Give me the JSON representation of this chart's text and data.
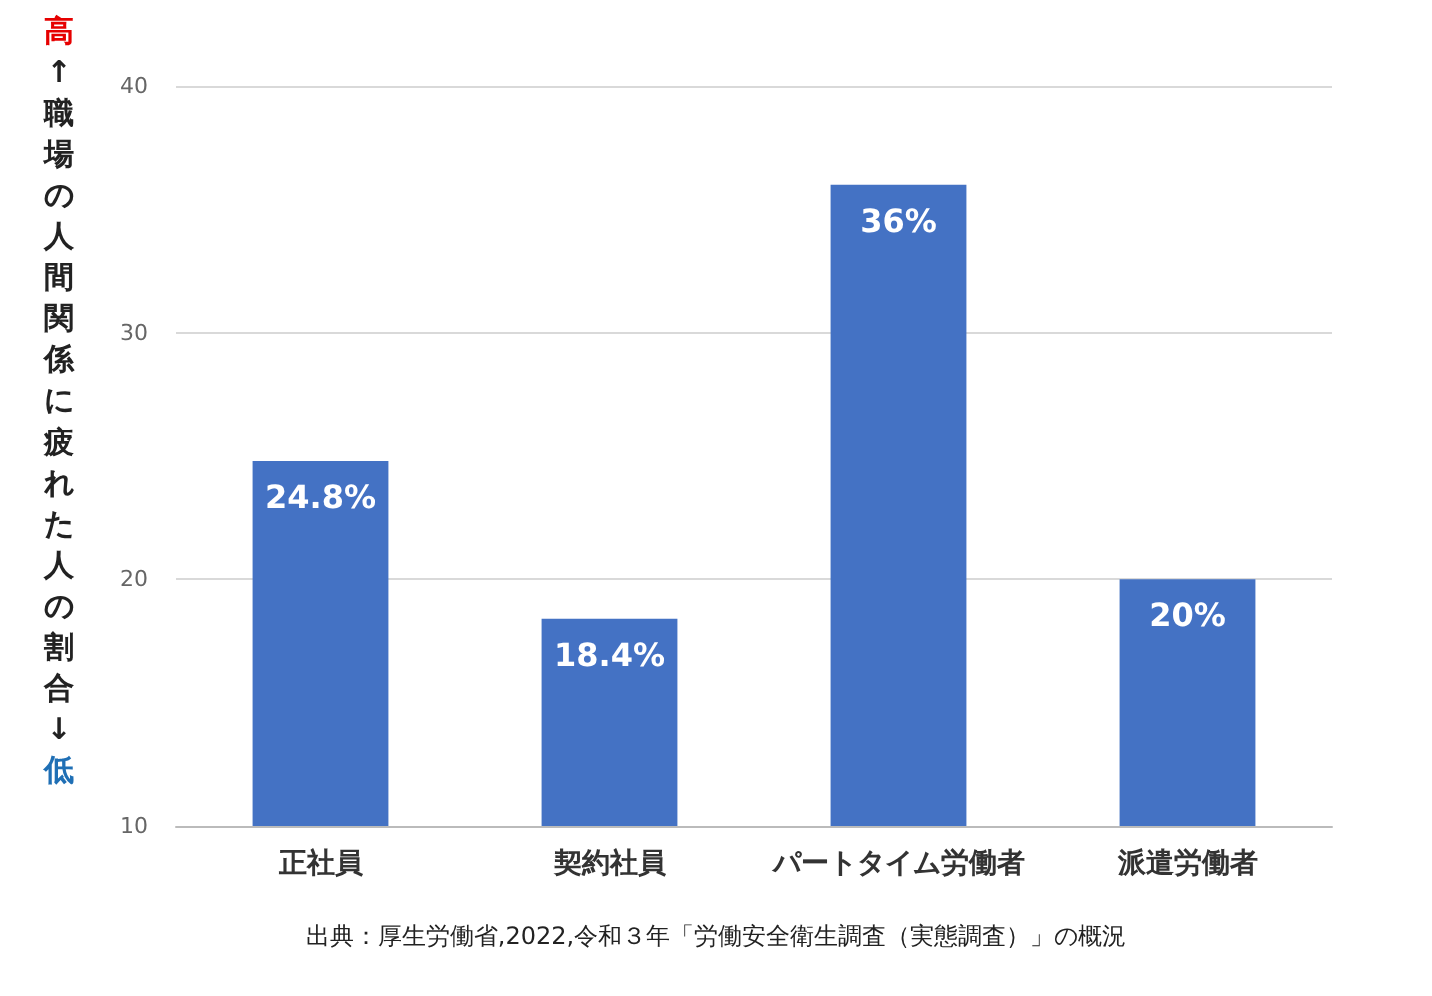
{
  "chart_data": {
    "type": "bar",
    "ylabel": "高↑職場の人間関係に疲れた人の割合↓低",
    "categories": [
      "正社員",
      "契約社員",
      "パートタイム労働者",
      "派遣労働者"
    ],
    "values": [
      24.8,
      18.4,
      36,
      20
    ],
    "value_labels": [
      "24.8%",
      "18.4%",
      "36%",
      "20%"
    ],
    "color": "#4472c4",
    "ylim": [
      10,
      40
    ],
    "yticks": [
      10,
      20,
      30,
      40
    ],
    "grid": "y",
    "annotations": [
      "出典：厚生労働省,2022,令和３年「労働安全衛生調査（実態調査）」の概況"
    ]
  }
}
